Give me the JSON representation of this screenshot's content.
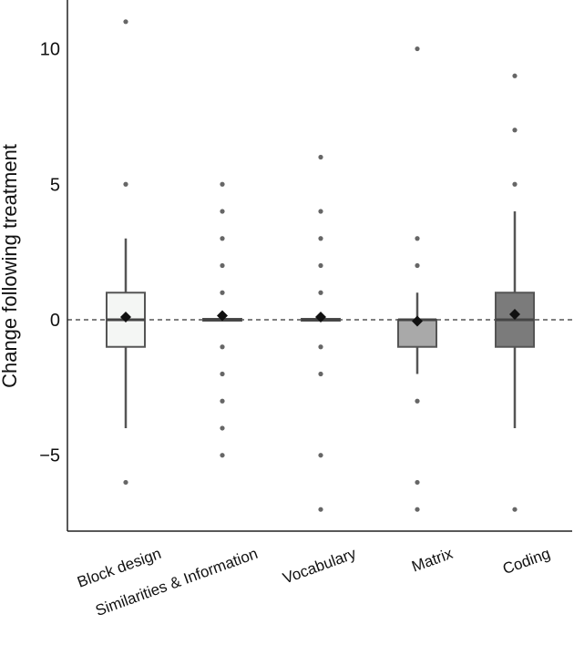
{
  "chart_data": {
    "type": "box",
    "title": "",
    "xlabel": "",
    "ylabel": "Change following treatment",
    "ylim": [
      -7.8,
      11.8
    ],
    "yticks": [
      -5,
      0,
      5,
      10
    ],
    "reference_line": 0,
    "categories": [
      "Block design",
      "Similarities & Information",
      "Vocabulary",
      "Matrix",
      "Coding"
    ],
    "boxes": [
      {
        "name": "Block design",
        "q1": -1,
        "median": 0,
        "q3": 1,
        "whisker_low": -4,
        "whisker_high": 3,
        "mean": 0.1,
        "fill": "#f4f6f4",
        "outliers": [
          11,
          5,
          -6
        ]
      },
      {
        "name": "Similarities & Information",
        "q1": 0,
        "median": 0,
        "q3": 0,
        "whisker_low": 0,
        "whisker_high": 0,
        "mean": 0.15,
        "fill": "#d0d0d0",
        "outliers": [
          5,
          4,
          3,
          2,
          1,
          -1,
          -2,
          -3,
          -4,
          -5
        ]
      },
      {
        "name": "Vocabulary",
        "q1": 0,
        "median": 0,
        "q3": 0,
        "whisker_low": 0,
        "whisker_high": 0,
        "mean": 0.1,
        "fill": "#bcbcbc",
        "outliers": [
          6,
          4,
          3,
          2,
          1,
          -1,
          -2,
          -5,
          -7
        ]
      },
      {
        "name": "Matrix",
        "q1": -1,
        "median": 0,
        "q3": 0,
        "whisker_low": -2,
        "whisker_high": 1,
        "mean": -0.05,
        "fill": "#a9a9a9",
        "outliers": [
          10,
          3,
          2,
          -3,
          -6,
          -7
        ]
      },
      {
        "name": "Coding",
        "q1": -1,
        "median": 0,
        "q3": 1,
        "whisker_low": -4,
        "whisker_high": 4,
        "mean": 0.2,
        "fill": "#7b7b7b",
        "outliers": [
          9,
          7,
          5,
          -7
        ]
      }
    ]
  }
}
